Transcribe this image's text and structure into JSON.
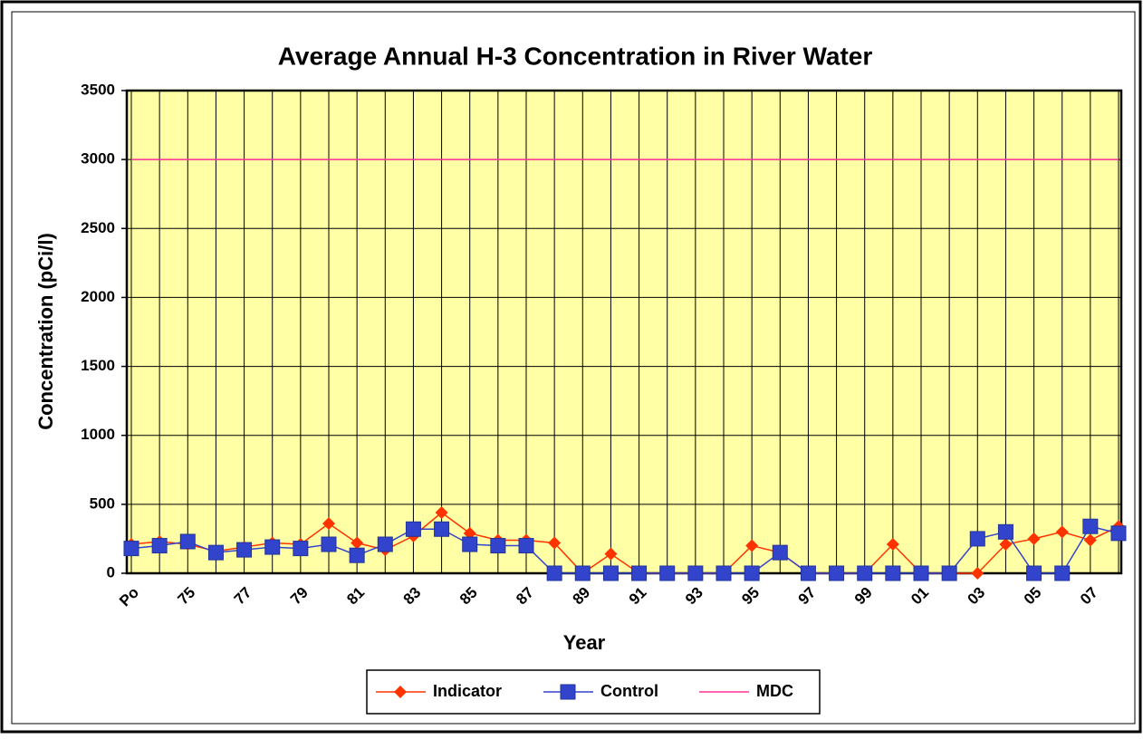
{
  "chart_data": {
    "type": "line",
    "title": "Average Annual H-3 Concentration in River Water",
    "x_label": "Year",
    "y_label": "Concentration (pCi/l)",
    "categories": [
      "Po",
      null,
      "75",
      null,
      "77",
      null,
      "79",
      null,
      "81",
      null,
      "83",
      null,
      "85",
      null,
      "87",
      null,
      "89",
      null,
      "91",
      null,
      "93",
      null,
      "95",
      null,
      "97",
      null,
      "99",
      null,
      "01",
      null,
      "03",
      null,
      "05",
      null,
      "07",
      null
    ],
    "series": [
      {
        "name": "Indicator",
        "color": "#ff3300",
        "marker": "diamond",
        "values": [
          210,
          230,
          210,
          160,
          190,
          220,
          210,
          360,
          220,
          170,
          270,
          440,
          290,
          240,
          240,
          220,
          0,
          140,
          0,
          0,
          0,
          0,
          200,
          150,
          0,
          0,
          0,
          210,
          0,
          0,
          0,
          210,
          250,
          300,
          240,
          340
        ]
      },
      {
        "name": "Control",
        "color": "#3344cc",
        "marker": "square",
        "values": [
          180,
          200,
          230,
          150,
          170,
          190,
          180,
          210,
          130,
          210,
          320,
          320,
          210,
          200,
          200,
          0,
          0,
          0,
          0,
          0,
          0,
          0,
          0,
          150,
          0,
          0,
          0,
          0,
          0,
          0,
          250,
          300,
          0,
          0,
          340,
          290
        ]
      },
      {
        "name": "MDC",
        "color": "#ff3399",
        "marker": "none",
        "values": [
          3000,
          3000,
          3000,
          3000,
          3000,
          3000,
          3000,
          3000,
          3000,
          3000,
          3000,
          3000,
          3000,
          3000,
          3000,
          3000,
          3000,
          3000,
          3000,
          3000,
          3000,
          3000,
          3000,
          3000,
          3000,
          3000,
          3000,
          3000,
          3000,
          3000,
          3000,
          3000,
          3000,
          3000,
          3000,
          3000
        ]
      }
    ],
    "ylim": [
      0,
      3500
    ],
    "yticks": [
      0,
      500,
      1000,
      1500,
      2000,
      2500,
      3000,
      3500
    ],
    "grid": true,
    "legend": "bottom",
    "plot_background": "#ffffa6"
  }
}
